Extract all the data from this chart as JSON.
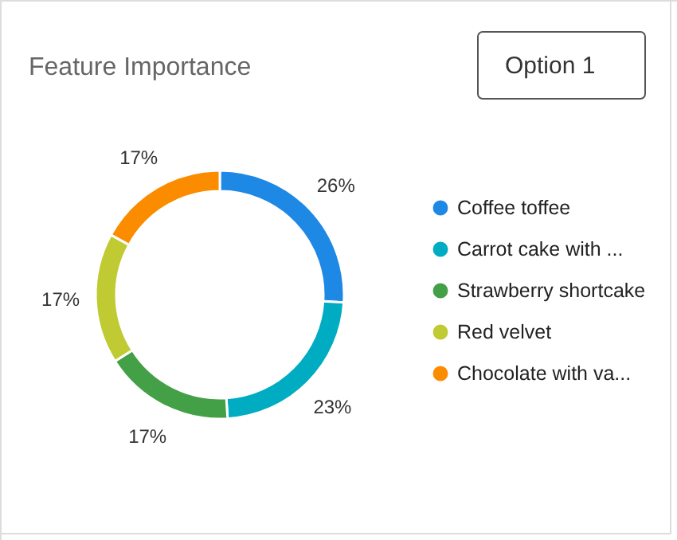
{
  "chart_data": {
    "type": "donut",
    "title": "Feature Importance",
    "categories": [
      "Coffee toffee",
      "Carrot cake with ...",
      "Strawberry shortcake",
      "Red velvet",
      "Chocolate with va..."
    ],
    "values": [
      26,
      23,
      17,
      17,
      17
    ],
    "colors": [
      "#1e88e5",
      "#00acc1",
      "#43a047",
      "#c0ca33",
      "#fb8c00"
    ],
    "value_labels": [
      "26%",
      "23%",
      "17%",
      "17%",
      "17%"
    ],
    "legend": "right",
    "annotations": [
      "Option 1"
    ]
  }
}
